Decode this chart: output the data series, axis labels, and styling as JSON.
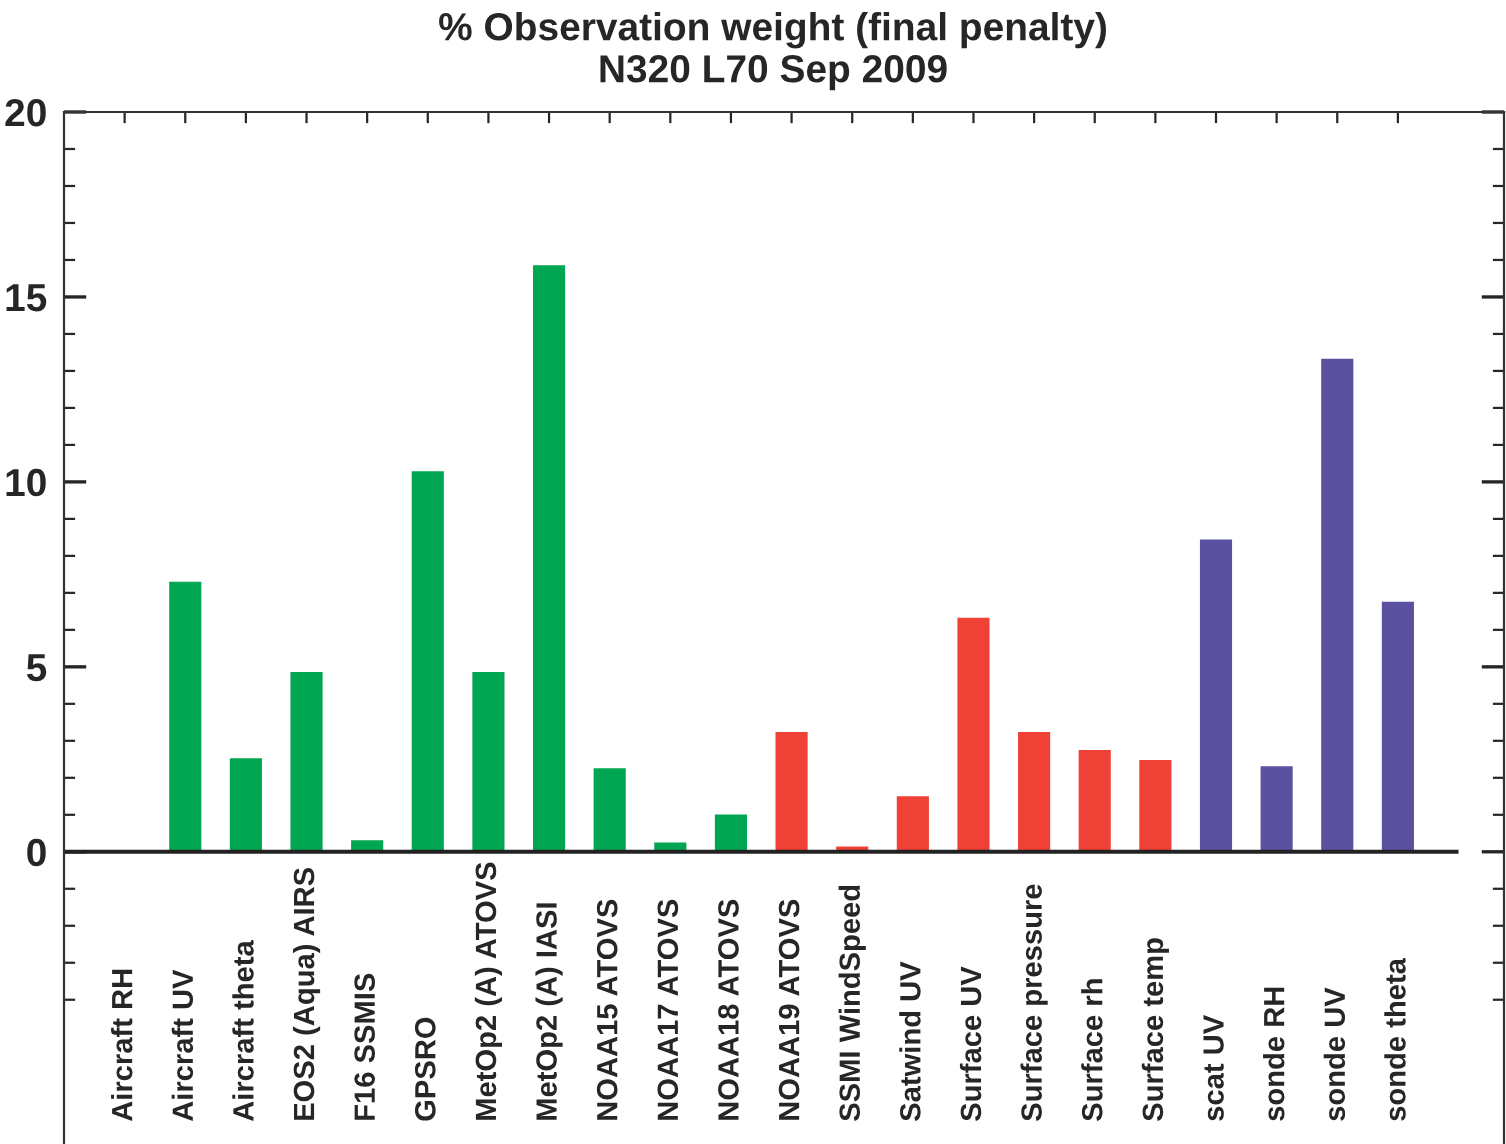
{
  "chart_data": {
    "type": "bar",
    "title": "% Observation weight (final penalty)",
    "subtitle": "N320 L70 Sep 2009",
    "categories": [
      "Aircraft RH",
      "Aircraft UV",
      "Aircraft theta",
      "EOS2 (Aqua) AIRS",
      "F16 SSMIS",
      "GPSRO",
      "MetOp2 (A) ATOVS",
      "MetOp2 (A) IASI",
      "NOAA15 ATOVS",
      "NOAA17 ATOVS",
      "NOAA18 ATOVS",
      "NOAA19 ATOVS",
      "SSMI WindSpeed",
      "Satwind UV",
      "Surface UV",
      "Surface pressure",
      "Surface rh",
      "Surface temp",
      "scat UV",
      "sonde RH",
      "sonde UV",
      "sonde theta"
    ],
    "values": [
      0.05,
      7.3,
      2.53,
      4.86,
      0.31,
      10.29,
      4.86,
      15.86,
      2.26,
      0.25,
      1.01,
      3.24,
      0.14,
      1.5,
      6.33,
      3.24,
      2.75,
      2.48,
      8.44,
      2.31,
      13.33,
      6.76
    ],
    "colors": [
      "#00a651",
      "#00a651",
      "#00a651",
      "#00a651",
      "#00a651",
      "#00a651",
      "#00a651",
      "#00a651",
      "#00a651",
      "#00a651",
      "#00a651",
      "#ef4136",
      "#ef4136",
      "#ef4136",
      "#ef4136",
      "#ef4136",
      "#ef4136",
      "#ef4136",
      "#5b51a1",
      "#5b51a1",
      "#5b51a1",
      "#5b51a1"
    ],
    "ylim": [
      -7.9,
      20
    ],
    "yticks": [
      {
        "value": -4,
        "label": null
      },
      {
        "value": -3,
        "label": null
      },
      {
        "value": -2,
        "label": null
      },
      {
        "value": -1,
        "label": null
      },
      0,
      {
        "value": 1,
        "label": null
      },
      {
        "value": 2,
        "label": null
      },
      {
        "value": 3,
        "label": null
      },
      {
        "value": 4,
        "label": null
      },
      5,
      {
        "value": 6,
        "label": null
      },
      {
        "value": 7,
        "label": null
      },
      {
        "value": 8,
        "label": null
      },
      {
        "value": 9,
        "label": null
      },
      10,
      {
        "value": 11,
        "label": null
      },
      {
        "value": 12,
        "label": null
      },
      {
        "value": 13,
        "label": null
      },
      {
        "value": 14,
        "label": null
      },
      15,
      {
        "value": 16,
        "label": null
      },
      {
        "value": 17,
        "label": null
      },
      {
        "value": 18,
        "label": null
      },
      {
        "value": 19,
        "label": null
      },
      20
    ],
    "grid": false,
    "legend": false
  }
}
